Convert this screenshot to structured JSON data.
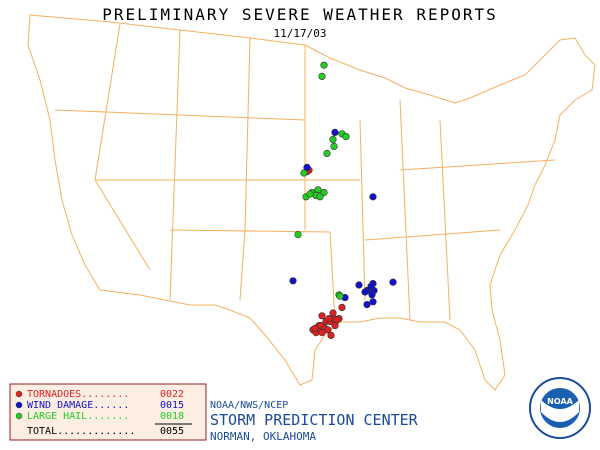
{
  "header": {
    "title": "PRELIMINARY SEVERE WEATHER REPORTS",
    "date": "11/17/03"
  },
  "reports": [
    {
      "label": "TORNADOES........",
      "count": "0022",
      "color": "#dd2222",
      "lon": [
        -97.1,
        -97.3,
        -93.8,
        -94.1,
        -95.8,
        -95.4,
        -96.1,
        -96.7,
        -95.0,
        -94.6,
        -96.4,
        -96.2,
        -95.9,
        -95.5,
        -95.1,
        -94.7,
        -94.3,
        -94.9,
        -95.8,
        -95.2,
        -96.5,
        -94.5
      ],
      "lat": [
        40.2,
        40.1,
        30.4,
        29.6,
        29.8,
        29.4,
        29.1,
        28.8,
        29.4,
        29.6,
        28.6,
        28.9,
        29.1,
        28.9,
        29.6,
        30.0,
        29.5,
        28.4,
        28.6,
        28.8,
        28.9,
        29.1
      ]
    },
    {
      "label": "WIND DAMAGE......",
      "count": "0015",
      "color": "#1111cc",
      "lon": [
        -94.5,
        -97.3,
        -90.7,
        -98.7,
        -91.3,
        -90.7,
        -90.6,
        -88.7,
        -93.5,
        -91.3,
        -90.7,
        -92.1,
        -90.8,
        -90.9,
        -91.5
      ],
      "lat": [
        42.9,
        40.4,
        38.3,
        32.3,
        31.6,
        32.1,
        31.6,
        32.2,
        31.1,
        30.6,
        30.8,
        32.0,
        31.3,
        31.9,
        31.5
      ]
    },
    {
      "label": "LARGE HAIL.......",
      "count": "0018",
      "color": "#22cc22",
      "lon": [
        -95.6,
        -95.8,
        -93.8,
        -94.6,
        -95.3,
        -97.6,
        -97.4,
        -96.8,
        -96.2,
        -95.6,
        -98.2,
        -94.1,
        -94.7,
        -93.4,
        -94.0,
        -96.4,
        -97.0,
        -96.0
      ],
      "lat": [
        47.7,
        46.9,
        42.8,
        41.9,
        41.4,
        40.0,
        38.3,
        38.6,
        38.8,
        38.6,
        35.6,
        31.3,
        42.4,
        42.6,
        31.2,
        38.4,
        38.5,
        38.3
      ]
    }
  ],
  "total": {
    "label": "TOTAL.............",
    "count": "0055"
  },
  "footer": {
    "agency": "NOAA/NWS/NCEP",
    "center": "STORM PREDICTION CENTER",
    "location": "NORMAN, OKLAHOMA",
    "logo": "NOAA"
  }
}
